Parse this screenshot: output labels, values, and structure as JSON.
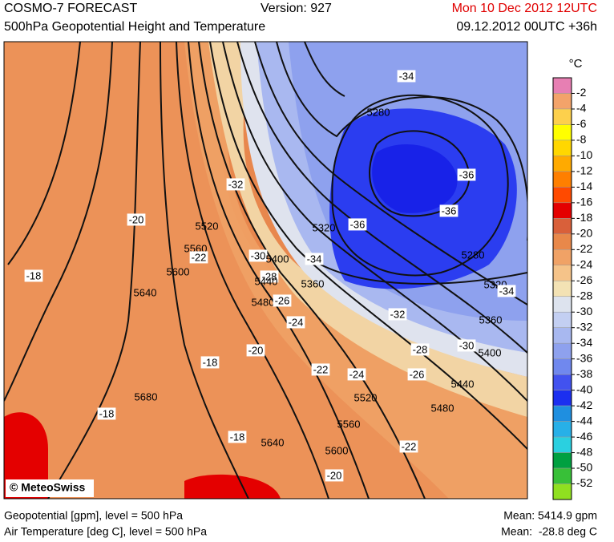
{
  "header": {
    "title": "COSMO-7 FORECAST",
    "version": "Version: 927",
    "valid_time": "Mon 10 Dec 2012 12UTC",
    "subtitle": "500hPa Geopotential Height and Temperature",
    "run": "09.12.2012 00UTC +36h"
  },
  "legend": {
    "unit": "°C",
    "ticks": [
      -2,
      -4,
      -6,
      -8,
      -10,
      -12,
      -14,
      -16,
      -18,
      -20,
      -22,
      -24,
      -26,
      -28,
      -30,
      -32,
      -34,
      -36,
      -38,
      -40,
      -42,
      -44,
      -46,
      -48,
      -50,
      -52
    ],
    "colors": [
      "#e77fb3",
      "#f3a36a",
      "#fdd04c",
      "#ffff00",
      "#ffd700",
      "#ffaa00",
      "#ff7f00",
      "#ff4a00",
      "#e40000",
      "#d9603a",
      "#e8884a",
      "#f0a266",
      "#f5c389",
      "#f3e2b4",
      "#dde3ee",
      "#c3cff2",
      "#a8b8f0",
      "#8ea1ee",
      "#7088ee",
      "#4252ef",
      "#1b2ff0",
      "#1f8fe0",
      "#27b0e8",
      "#2ad0e0",
      "#00a040",
      "#38c038",
      "#90e020"
    ]
  },
  "map": {
    "copyright": "© MeteoSwiss",
    "contour_labels": [
      -34,
      5280,
      -36,
      -36,
      -36,
      5320,
      5280,
      -34,
      5320,
      -34,
      5360,
      5360,
      -32,
      -30,
      5400,
      -28,
      -26,
      5440,
      5480,
      -32,
      -30,
      5400,
      -28,
      5440,
      5480,
      -26,
      -24,
      5520,
      5560,
      -22,
      5600,
      -20,
      -18,
      5640,
      -20,
      -18,
      -22,
      -24,
      5520,
      5560,
      5680,
      -18,
      -18,
      5640,
      5600,
      -22,
      -20
    ]
  },
  "footer": {
    "geopotential": "Geopotential [gpm], level = 500 hPa",
    "temperature": "Air Temperature [deg C], level = 500 hPa",
    "mean_geopotential": "Mean: 5414.9 gpm",
    "mean_temperature": "Mean:  -28.8 deg C"
  }
}
